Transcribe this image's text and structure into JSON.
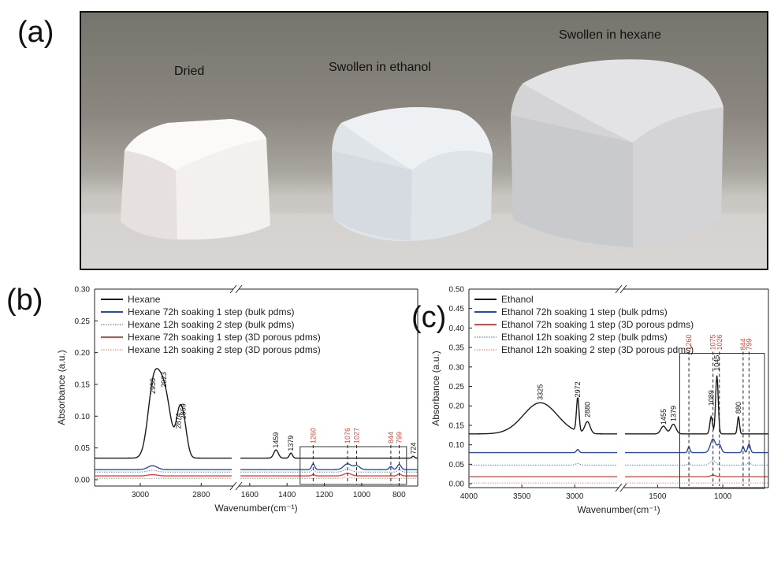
{
  "panel_labels": {
    "a": "(a)",
    "b": "(b)",
    "c": "(c)"
  },
  "photo": {
    "captions": {
      "dried": "Dried",
      "ethanol": "Swollen in ethanol",
      "hexane": "Swollen in hexane"
    }
  },
  "colors": {
    "black": "#1a1a1a",
    "blue": "#2b4aa8",
    "blue_dot": "#5b7fd6",
    "red": "#e0463a",
    "red_dot": "#ef8a80",
    "annot_red": "#e0463a"
  },
  "chart_data": [
    {
      "type": "line",
      "panel": "(b)",
      "xlabel": "Wavenumber(cm⁻¹)",
      "ylabel": "Absorbance (a.u.)",
      "ylim": [
        -0.01,
        0.3
      ],
      "yticks": [
        "0.00",
        "0.05",
        "0.10",
        "0.15",
        "0.20",
        "0.25",
        "0.30"
      ],
      "x_reversed": true,
      "x_segments": [
        [
          3150,
          2700
        ],
        [
          1650,
          700
        ]
      ],
      "xticks": [
        "3000",
        "2800",
        "1600",
        "1400",
        "1200",
        "1000",
        "800"
      ],
      "legend": {
        "placement": "top-left",
        "entries": [
          {
            "label": "Hexane",
            "color": "#1a1a1a",
            "style": "solid"
          },
          {
            "label": "Hexane 72h soaking 1 step (bulk pdms)",
            "color": "#2b4aa8",
            "style": "solid"
          },
          {
            "label": "Hexane 12h soaking 2 step (bulk pdms)",
            "color": "#5b7fd6",
            "style": "dotted"
          },
          {
            "label": "Hexane 72h soaking 1 step (3D porous pdms)",
            "color": "#e0463a",
            "style": "solid"
          },
          {
            "label": "Hexane 12h soaking 2 step (3D porous pdms)",
            "color": "#ef8a80",
            "style": "dotted"
          }
        ]
      },
      "series": [
        {
          "name": "Hexane",
          "color": "#1a1a1a",
          "style": "solid",
          "base": 0.034,
          "peaks": [
            [
              2958,
              0.098,
              18
            ],
            [
              2923,
              0.108,
              22
            ],
            [
              2874,
              0.043,
              10
            ],
            [
              2859,
              0.058,
              12
            ],
            [
              1459,
              0.013,
              12
            ],
            [
              1379,
              0.008,
              8
            ],
            [
              724,
              0.003,
              6
            ]
          ]
        },
        {
          "name": "Hexane 72h soaking 1 step (bulk pdms)",
          "color": "#2b4aa8",
          "style": "solid",
          "base": 0.016,
          "peaks": [
            [
              2960,
              0.006,
              15
            ],
            [
              1260,
              0.009,
              8
            ],
            [
              1076,
              0.009,
              20
            ],
            [
              1027,
              0.006,
              16
            ],
            [
              844,
              0.005,
              8
            ],
            [
              799,
              0.008,
              10
            ]
          ]
        },
        {
          "name": "Hexane 12h soaking 2 step (bulk pdms)",
          "color": "#5b7fd6",
          "style": "dotted",
          "base": 0.012,
          "peaks": [
            [
              2960,
              0.003,
              15
            ],
            [
              1260,
              0.004,
              8
            ],
            [
              1076,
              0.005,
              20
            ],
            [
              799,
              0.004,
              10
            ]
          ]
        },
        {
          "name": "Hexane 72h soaking 1 step (3D porous pdms)",
          "color": "#e0463a",
          "style": "solid",
          "base": 0.006,
          "peaks": [
            [
              2960,
              0.002,
              15
            ],
            [
              1260,
              0.002,
              8
            ],
            [
              1076,
              0.004,
              20
            ],
            [
              799,
              0.003,
              10
            ]
          ]
        },
        {
          "name": "Hexane 12h soaking 2 step (3D porous pdms)",
          "color": "#ef8a80",
          "style": "dotted",
          "base": 0.002,
          "peaks": [
            [
              1076,
              0.002,
              20
            ]
          ]
        }
      ],
      "annotations_black": [
        {
          "x": 2958,
          "y": 0.135,
          "text": "2958"
        },
        {
          "x": 2923,
          "y": 0.145,
          "text": "2923"
        },
        {
          "x": 2874,
          "y": 0.08,
          "text": "2874"
        },
        {
          "x": 2859,
          "y": 0.095,
          "text": "2859"
        },
        {
          "x": 1459,
          "y": 0.05,
          "text": "1459"
        },
        {
          "x": 1379,
          "y": 0.045,
          "text": "1379"
        },
        {
          "x": 724,
          "y": 0.04,
          "text": "724"
        }
      ],
      "annotations_red": [
        {
          "x": 1260,
          "text": "1260"
        },
        {
          "x": 1076,
          "text": "1076"
        },
        {
          "x": 1027,
          "text": "1027"
        },
        {
          "x": 844,
          "text": "844"
        },
        {
          "x": 799,
          "text": "799"
        }
      ],
      "highlight_box": {
        "x": [
          1330,
          760
        ],
        "y": [
          0.0,
          0.052
        ]
      }
    },
    {
      "type": "line",
      "panel": "(c)",
      "xlabel": "Wavenumber(cm⁻¹)",
      "ylabel": "Absorbance (a.u.)",
      "ylim": [
        -0.01,
        0.5
      ],
      "yticks": [
        "0.00",
        "0.05",
        "0.10",
        "0.15",
        "0.20",
        "0.25",
        "0.30",
        "0.35",
        "0.40",
        "0.45",
        "0.50"
      ],
      "x_reversed": true,
      "x_segments": [
        [
          4000,
          2600
        ],
        [
          1750,
          650
        ]
      ],
      "xticks": [
        "4000",
        "3500",
        "3000",
        "1500",
        "1000"
      ],
      "legend": {
        "placement": "top-left",
        "entries": [
          {
            "label": "Ethanol",
            "color": "#1a1a1a",
            "style": "solid"
          },
          {
            "label": "Ethanol 72h soaking 1 step (bulk pdms)",
            "color": "#2b4aa8",
            "style": "solid"
          },
          {
            "label": "Ethanol 72h soaking 1 step (3D porous pdms)",
            "color": "#e0463a",
            "style": "solid"
          },
          {
            "label": "Ethanol 12h soaking 2 step (bulk pdms)",
            "color": "#5b7fd6",
            "style": "dotted"
          },
          {
            "label": "Ethanol 12h soaking 2 step (3D porous pdms)",
            "color": "#ef8a80",
            "style": "dotted"
          }
        ]
      },
      "series": [
        {
          "name": "Ethanol",
          "color": "#1a1a1a",
          "style": "solid",
          "base": 0.128,
          "peaks": [
            [
              3325,
              0.08,
              160
            ],
            [
              2972,
              0.088,
              12
            ],
            [
              2880,
              0.03,
              25
            ],
            [
              1455,
              0.02,
              20
            ],
            [
              1379,
              0.025,
              20
            ],
            [
              1089,
              0.045,
              10
            ],
            [
              1045,
              0.15,
              10
            ],
            [
              880,
              0.045,
              8
            ]
          ]
        },
        {
          "name": "Ethanol 72h soaking 1 step (bulk pdms)",
          "color": "#2b4aa8",
          "style": "solid",
          "base": 0.08,
          "peaks": [
            [
              2972,
              0.008,
              12
            ],
            [
              1260,
              0.015,
              8
            ],
            [
              1075,
              0.035,
              20
            ],
            [
              1026,
              0.02,
              14
            ],
            [
              844,
              0.015,
              8
            ],
            [
              799,
              0.022,
              10
            ]
          ]
        },
        {
          "name": "Ethanol 72h soaking 1 step (3D porous pdms)",
          "color": "#e0463a",
          "style": "solid",
          "base": 0.018,
          "peaks": [
            [
              1075,
              0.004,
              20
            ]
          ]
        },
        {
          "name": "Ethanol 12h soaking 2 step (bulk pdms)",
          "color": "#5b7fd6",
          "style": "dotted",
          "base": 0.048,
          "peaks": [
            [
              2972,
              0.004,
              20
            ],
            [
              1260,
              0.006,
              8
            ],
            [
              1075,
              0.012,
              20
            ],
            [
              799,
              0.008,
              10
            ]
          ]
        },
        {
          "name": "Ethanol 12h soaking 2 step (3D porous pdms)",
          "color": "#ef8a80",
          "style": "dotted",
          "base": 0.002,
          "peaks": []
        }
      ],
      "annotations_black": [
        {
          "x": 3325,
          "y": 0.215,
          "text": "3325"
        },
        {
          "x": 2972,
          "y": 0.222,
          "text": "2972"
        },
        {
          "x": 2880,
          "y": 0.17,
          "text": "2880"
        },
        {
          "x": 1455,
          "y": 0.152,
          "text": "1455"
        },
        {
          "x": 1379,
          "y": 0.16,
          "text": "1379"
        },
        {
          "x": 1089,
          "y": 0.2,
          "text": "1089"
        },
        {
          "x": 1045,
          "y": 0.29,
          "text": "1045"
        },
        {
          "x": 880,
          "y": 0.18,
          "text": "880"
        }
      ],
      "annotations_red": [
        {
          "x": 1260,
          "text": "1260"
        },
        {
          "x": 1075,
          "text": "1075"
        },
        {
          "x": 1026,
          "text": "1026"
        },
        {
          "x": 844,
          "text": "844"
        },
        {
          "x": 799,
          "text": "799"
        }
      ],
      "highlight_box": {
        "x": [
          1330,
          680
        ],
        "y": [
          0.0,
          0.335
        ]
      }
    }
  ]
}
